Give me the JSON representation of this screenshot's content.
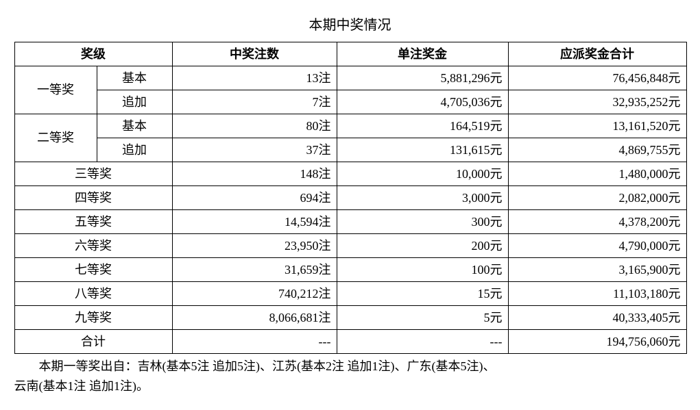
{
  "title": "本期中奖情况",
  "headers": {
    "level": "奖级",
    "count": "中奖注数",
    "perprize": "单注奖金",
    "total": "应派奖金合计"
  },
  "rows": [
    {
      "level": "一等奖",
      "sub": "基本",
      "count": "13注",
      "perprize": "5,881,296元",
      "total": "76,456,848元",
      "rowspan": 2
    },
    {
      "level": "",
      "sub": "追加",
      "count": "7注",
      "perprize": "4,705,036元",
      "total": "32,935,252元"
    },
    {
      "level": "二等奖",
      "sub": "基本",
      "count": "80注",
      "perprize": "164,519元",
      "total": "13,161,520元",
      "rowspan": 2
    },
    {
      "level": "",
      "sub": "追加",
      "count": "37注",
      "perprize": "131,615元",
      "total": "4,869,755元"
    },
    {
      "level": "三等奖",
      "sub": "",
      "count": "148注",
      "perprize": "10,000元",
      "total": "1,480,000元",
      "colspan": 2
    },
    {
      "level": "四等奖",
      "sub": "",
      "count": "694注",
      "perprize": "3,000元",
      "total": "2,082,000元",
      "colspan": 2
    },
    {
      "level": "五等奖",
      "sub": "",
      "count": "14,594注",
      "perprize": "300元",
      "total": "4,378,200元",
      "colspan": 2
    },
    {
      "level": "六等奖",
      "sub": "",
      "count": "23,950注",
      "perprize": "200元",
      "total": "4,790,000元",
      "colspan": 2
    },
    {
      "level": "七等奖",
      "sub": "",
      "count": "31,659注",
      "perprize": "100元",
      "total": "3,165,900元",
      "colspan": 2
    },
    {
      "level": "八等奖",
      "sub": "",
      "count": "740,212注",
      "perprize": "15元",
      "total": "11,103,180元",
      "colspan": 2
    },
    {
      "level": "九等奖",
      "sub": "",
      "count": "8,066,681注",
      "perprize": "5元",
      "total": "40,333,405元",
      "colspan": 2
    },
    {
      "level": "合计",
      "sub": "",
      "count": "---",
      "perprize": "---",
      "total": "194,756,060元",
      "colspan": 2
    }
  ],
  "footer1": "本期一等奖出自：吉林(基本5注 追加5注)、江苏(基本2注 追加1注)、广东(基本5注)、",
  "footer2": "云南(基本1注 追加1注)。"
}
